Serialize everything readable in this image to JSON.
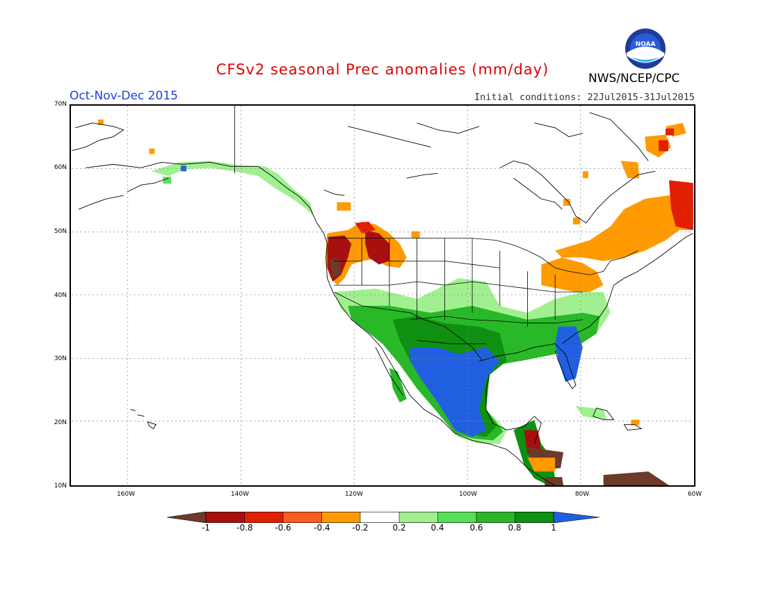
{
  "header": {
    "title": "CFSv2 seasonal Prec anomalies (mm/day)",
    "period": "Oct-Nov-Dec 2015",
    "initial_conditions": "Initial conditions: 22Jul2015-31Jul2015",
    "agency": "NWS/NCEP/CPC",
    "logo_text": "NOAA"
  },
  "map": {
    "lat_labels": [
      "70N",
      "60N",
      "50N",
      "40N",
      "30N",
      "20N",
      "10N"
    ],
    "lon_labels": [
      "160W",
      "140W",
      "120W",
      "100W",
      "80W",
      "60W"
    ]
  },
  "legend": {
    "colors": [
      "#6b3a2a",
      "#a81010",
      "#e02000",
      "#ff5a20",
      "#ff9a00",
      "#ffffff",
      "#a0f090",
      "#55e055",
      "#28b828",
      "#109010",
      "#2060e0"
    ],
    "labels": [
      "-1",
      "-0.8",
      "-0.6",
      "-0.4",
      "-0.2",
      "0.2",
      "0.4",
      "0.6",
      "0.8",
      "1"
    ]
  }
}
